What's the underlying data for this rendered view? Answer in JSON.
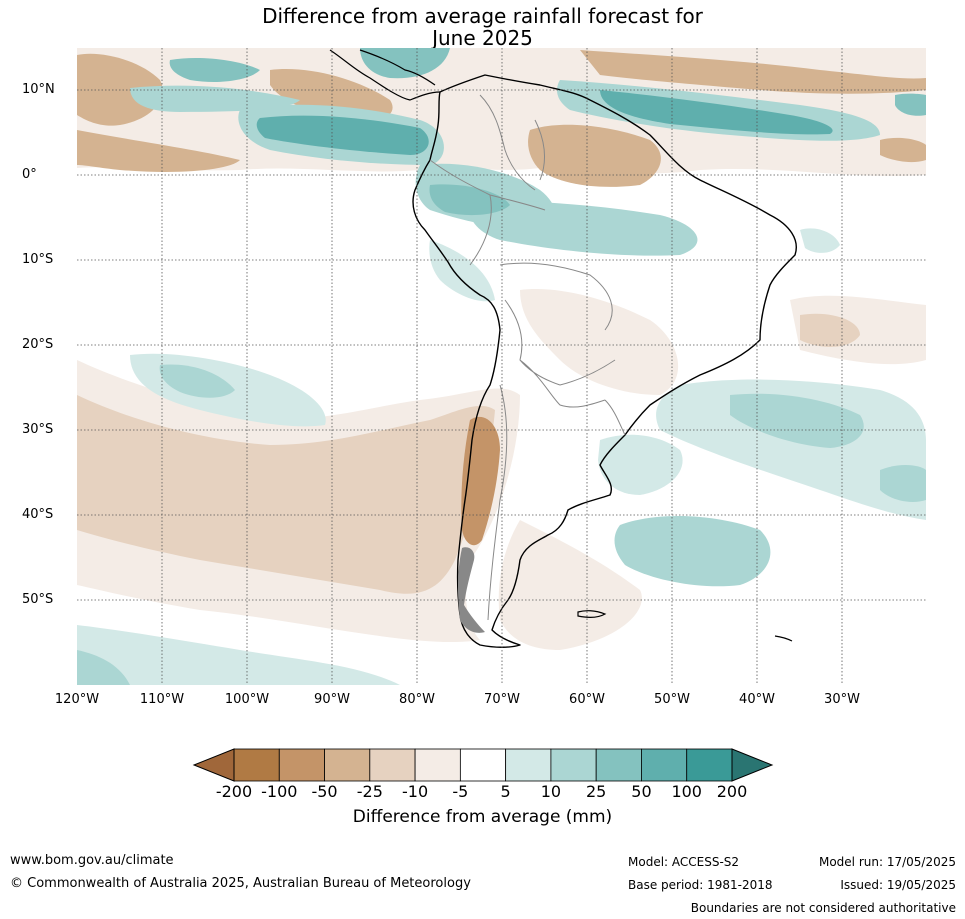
{
  "title": {
    "line1": "Difference from average rainfall forecast for",
    "line2": "June 2025"
  },
  "map": {
    "lat_labels": [
      "10°N",
      "0°",
      "10°S",
      "20°S",
      "30°S",
      "40°S",
      "50°S"
    ],
    "lon_labels": [
      "120°W",
      "110°W",
      "100°W",
      "90°W",
      "80°W",
      "70°W",
      "60°W",
      "50°W",
      "40°W",
      "30°W"
    ],
    "extent": {
      "lon_min": -120,
      "lon_max": -20,
      "lat_min": -60,
      "lat_max": 15
    }
  },
  "colorbar": {
    "ticks": [
      "-200",
      "-100",
      "-50",
      "-25",
      "-10",
      "-5",
      "5",
      "10",
      "25",
      "50",
      "100",
      "200"
    ],
    "colors": [
      "#a0673a",
      "#b07a44",
      "#c49468",
      "#d4b391",
      "#e6d2c0",
      "#f4ece6",
      "#ffffff",
      "#d3e9e7",
      "#abd6d3",
      "#84c2bf",
      "#5fafad",
      "#3a9a97",
      "#2a7572"
    ],
    "label": "Difference from average (mm)"
  },
  "footer": {
    "website": "www.bom.gov.au/climate",
    "copyright": "© Commonwealth of Australia 2025, Australian Bureau of Meteorology",
    "model": "Model: ACCESS-S2",
    "base_period": "Base period: 1981-2018",
    "model_run": "Model run: 17/05/2025",
    "issued": "Issued: 19/05/2025",
    "disclaimer": "Boundaries are not considered authoritative"
  }
}
